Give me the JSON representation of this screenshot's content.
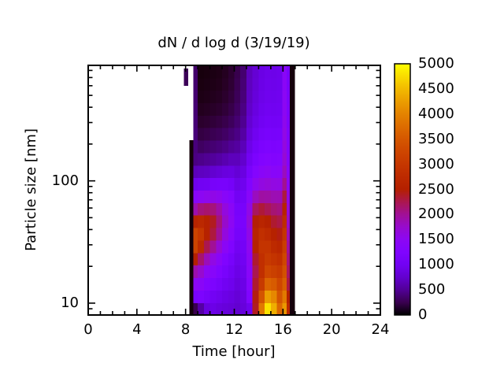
{
  "figure": {
    "background": "#ffffff",
    "text_color": "#000000"
  },
  "chart_data": {
    "type": "heatmap",
    "title": "dN / d log d (3/19/19)",
    "xlabel": "Time [hour]",
    "ylabel": "Particle size [nm]",
    "x_axis": {
      "min": 0,
      "max": 24,
      "major_ticks": [
        0,
        4,
        8,
        12,
        16,
        20,
        24
      ],
      "major_tick_labels": [
        "0",
        "4",
        "8",
        "12",
        "16",
        "20",
        "24"
      ],
      "minor_tick_interval": 1
    },
    "y_axis": {
      "scale": "log",
      "min": 8,
      "max": 880,
      "major_ticks": [
        10,
        100
      ],
      "major_tick_labels": [
        "10",
        "100"
      ],
      "minor_ticks": [
        8,
        9,
        20,
        30,
        40,
        50,
        60,
        70,
        80,
        90,
        200,
        300,
        400,
        500,
        600,
        700,
        800
      ]
    },
    "colorbar": {
      "min": 0,
      "max": 5000,
      "tick_interval": 500,
      "tick_values": [
        0,
        500,
        1000,
        1500,
        2000,
        2500,
        3000,
        3500,
        4000,
        4500,
        5000
      ],
      "tick_labels": [
        "0",
        "500",
        "1000",
        "1500",
        "2000",
        "2500",
        "3000",
        "3500",
        "4000",
        "4500",
        "5000"
      ],
      "palette": "gnuplot rgbformulae 7,5,15 (black-purple-violet-red-orange-yellow)",
      "palette_key_colors": {
        "0": "#000000",
        "1000": "#7202f2",
        "2500": "#b42000",
        "3500": "#d55700",
        "5000": "#ffff00"
      }
    },
    "heatmap": {
      "units": "dN / d log d",
      "time_bins": [
        [
          8.3,
          8.62
        ],
        [
          8.62,
          9.0
        ],
        [
          9.0,
          9.5
        ],
        [
          9.5,
          10.0
        ],
        [
          10.0,
          10.5
        ],
        [
          10.5,
          11.0
        ],
        [
          11.0,
          11.5
        ],
        [
          11.5,
          12.0
        ],
        [
          12.0,
          12.5
        ],
        [
          12.5,
          13.0
        ],
        [
          13.0,
          13.5
        ],
        [
          13.5,
          14.0
        ],
        [
          14.0,
          14.5
        ],
        [
          14.5,
          15.0
        ],
        [
          15.0,
          15.5
        ],
        [
          15.5,
          15.95
        ],
        [
          15.95,
          16.3
        ],
        [
          16.3,
          16.55
        ],
        [
          16.55,
          16.95
        ]
      ],
      "size_bin_edges": [
        8.0,
        10.1,
        12.8,
        16.2,
        20.5,
        25.9,
        32.8,
        41.5,
        52.4,
        66.3,
        83.9,
        106,
        134,
        170,
        215,
        272,
        344,
        435,
        550,
        696,
        880
      ],
      "values": [
        [
          30,
          30,
          30,
          30,
          30,
          30,
          30,
          30,
          30,
          30,
          30,
          30,
          30,
          30,
          null,
          null,
          null,
          null,
          null,
          null
        ],
        [
          250,
          1150,
          1500,
          1900,
          2500,
          3200,
          3200,
          2600,
          1900,
          1400,
          950,
          650,
          430,
          400,
          390,
          380,
          370,
          360,
          350,
          340
        ],
        [
          550,
          1200,
          1450,
          1750,
          2150,
          2750,
          3000,
          2700,
          2100,
          1500,
          1000,
          680,
          460,
          310,
          210,
          140,
          95,
          65,
          50,
          40
        ],
        [
          850,
          1100,
          1300,
          1500,
          1850,
          2250,
          2550,
          2550,
          2150,
          1550,
          1020,
          700,
          490,
          340,
          230,
          155,
          105,
          75,
          58,
          48
        ],
        [
          900,
          1020,
          1200,
          1400,
          1620,
          2000,
          2300,
          2400,
          2100,
          1600,
          1100,
          760,
          520,
          370,
          260,
          180,
          125,
          90,
          70,
          58
        ],
        [
          850,
          960,
          1100,
          1260,
          1450,
          1720,
          2000,
          2100,
          1920,
          1540,
          1120,
          800,
          560,
          400,
          285,
          205,
          145,
          105,
          82,
          70
        ],
        [
          820,
          900,
          1000,
          1120,
          1260,
          1460,
          1660,
          1760,
          1660,
          1420,
          1120,
          840,
          610,
          440,
          320,
          240,
          180,
          140,
          115,
          100
        ],
        [
          800,
          860,
          950,
          1020,
          1110,
          1260,
          1410,
          1500,
          1460,
          1310,
          1070,
          860,
          660,
          500,
          375,
          290,
          230,
          190,
          165,
          150
        ],
        [
          760,
          800,
          850,
          900,
          950,
          1010,
          1090,
          1140,
          1110,
          1020,
          910,
          790,
          660,
          540,
          435,
          365,
          315,
          280,
          260,
          245
        ],
        [
          820,
          860,
          900,
          950,
          1000,
          1050,
          1110,
          1150,
          1110,
          1050,
          960,
          860,
          750,
          640,
          550,
          480,
          430,
          395,
          375,
          360
        ],
        [
          950,
          1250,
          1350,
          1420,
          1470,
          1520,
          1600,
          1680,
          1600,
          1420,
          1270,
          1120,
          1010,
          910,
          830,
          770,
          725,
          695,
          675,
          660
        ],
        [
          2400,
          2450,
          2350,
          2250,
          2350,
          2550,
          2600,
          2480,
          2200,
          1830,
          1530,
          1330,
          1180,
          1070,
          975,
          905,
          855,
          820,
          795,
          780
        ],
        [
          3900,
          3450,
          3050,
          2850,
          2850,
          2950,
          2850,
          2620,
          2320,
          1950,
          1640,
          1440,
          1290,
          1180,
          1080,
          1005,
          955,
          920,
          900,
          885
        ],
        [
          4800,
          4250,
          3650,
          3250,
          3050,
          2950,
          2750,
          2530,
          2230,
          1930,
          1680,
          1480,
          1330,
          1220,
          1120,
          1045,
          995,
          960,
          940,
          925
        ],
        [
          4400,
          4050,
          3550,
          3150,
          2950,
          2750,
          2550,
          2350,
          2130,
          1880,
          1630,
          1430,
          1300,
          1195,
          1105,
          1035,
          985,
          955,
          935,
          920
        ],
        [
          3700,
          3450,
          3250,
          3050,
          2850,
          2650,
          2450,
          2280,
          2080,
          1870,
          1620,
          1440,
          1320,
          1215,
          1125,
          1055,
          1005,
          975,
          955,
          940
        ],
        [
          4200,
          3900,
          3600,
          3400,
          3250,
          3100,
          2950,
          2780,
          2580,
          2300,
          2020,
          1830,
          1720,
          1660,
          1610,
          1560,
          1510,
          1480,
          1460,
          1450
        ],
        [
          2700,
          2500,
          2300,
          2200,
          2100,
          2000,
          1900,
          1800,
          1700,
          1580,
          1450,
          1350,
          1290,
          1250,
          1220,
          1195,
          1175,
          1160,
          1150,
          1140
        ],
        [
          35,
          35,
          35,
          35,
          35,
          35,
          35,
          35,
          35,
          35,
          35,
          35,
          35,
          35,
          35,
          35,
          35,
          35,
          35,
          35
        ]
      ],
      "isolated_cell": {
        "t_range": [
          7.85,
          8.2
        ],
        "size_range": [
          600,
          830
        ],
        "value": 280
      }
    }
  }
}
